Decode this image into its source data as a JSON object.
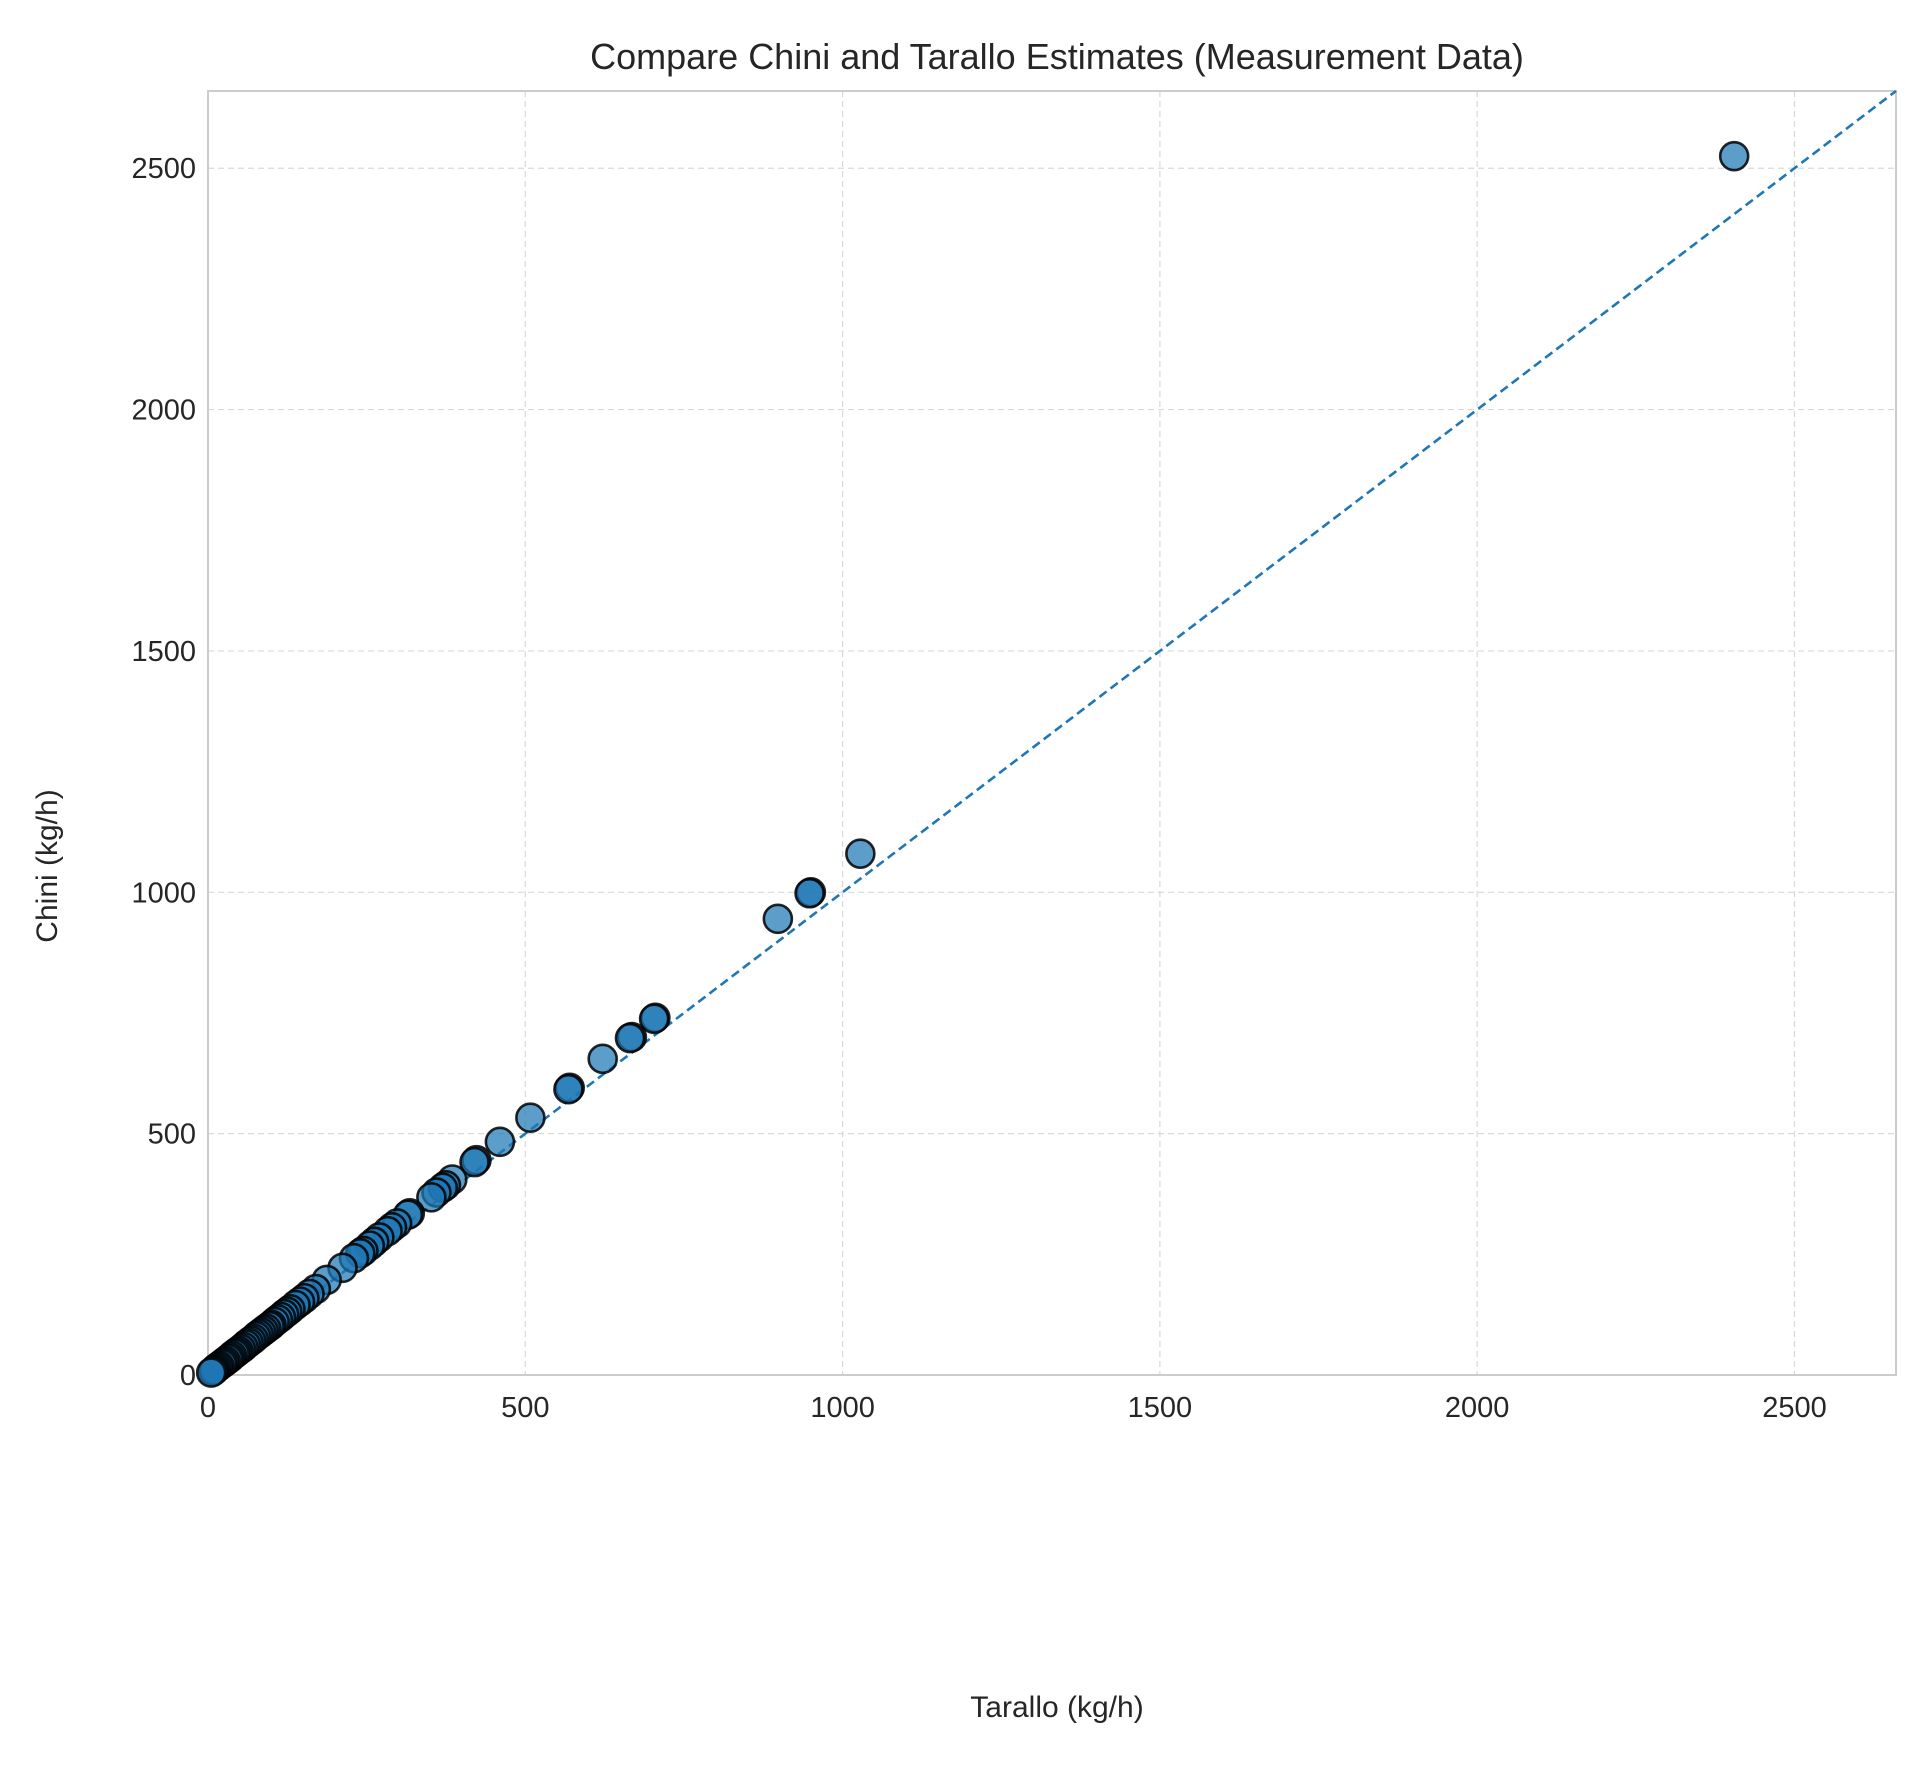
{
  "chart_data": {
    "type": "scatter",
    "title": "Compare Chini and Tarallo Estimates (Measurement Data)",
    "xlabel": "Tarallo (kg/h)",
    "ylabel": "Chini (kg/h)",
    "xlim": [
      0,
      2660
    ],
    "ylim": [
      0,
      2660
    ],
    "xticks": [
      0,
      500,
      1000,
      1500,
      2000,
      2500
    ],
    "yticks": [
      0,
      500,
      1000,
      1500,
      2000,
      2500
    ],
    "grid": true,
    "legend": "none",
    "reference_line": "y = x (dashed)",
    "colors": {
      "marker_fill": "#1f77b4",
      "marker_edge": "#000000",
      "reference_line": "#1f77b4",
      "grid": "#d9d9d9",
      "spine": "#cccccc"
    },
    "series": [
      {
        "x": [
          2405,
          1028,
          950,
          948,
          898,
          705,
          703,
          668,
          665,
          622,
          570,
          568,
          508,
          460,
          423,
          420,
          385,
          375,
          370,
          360,
          352,
          318,
          315,
          298,
          290,
          283,
          270,
          262,
          255,
          245,
          240,
          230,
          212,
          187,
          170,
          160,
          152,
          145,
          138,
          130,
          125,
          120,
          115,
          110,
          105,
          100,
          97,
          92,
          88,
          84,
          80,
          76,
          72,
          68,
          64,
          60,
          56,
          52,
          48,
          45,
          42,
          38,
          35,
          32,
          28,
          25,
          22,
          18,
          15,
          12,
          10,
          8,
          5
        ],
        "y": [
          2525,
          1080,
          1000,
          998,
          945,
          740,
          738,
          700,
          698,
          655,
          595,
          592,
          533,
          483,
          445,
          441,
          405,
          393,
          388,
          378,
          368,
          335,
          332,
          314,
          306,
          298,
          285,
          276,
          268,
          257,
          252,
          242,
          222,
          197,
          178,
          168,
          159,
          152,
          145,
          136,
          131,
          126,
          120,
          115,
          110,
          104,
          101,
          96,
          92,
          88,
          84,
          80,
          75,
          71,
          67,
          63,
          58,
          54,
          50,
          47,
          44,
          40,
          36,
          33,
          29,
          26,
          23,
          19,
          16,
          13,
          10,
          8,
          5
        ]
      }
    ]
  }
}
